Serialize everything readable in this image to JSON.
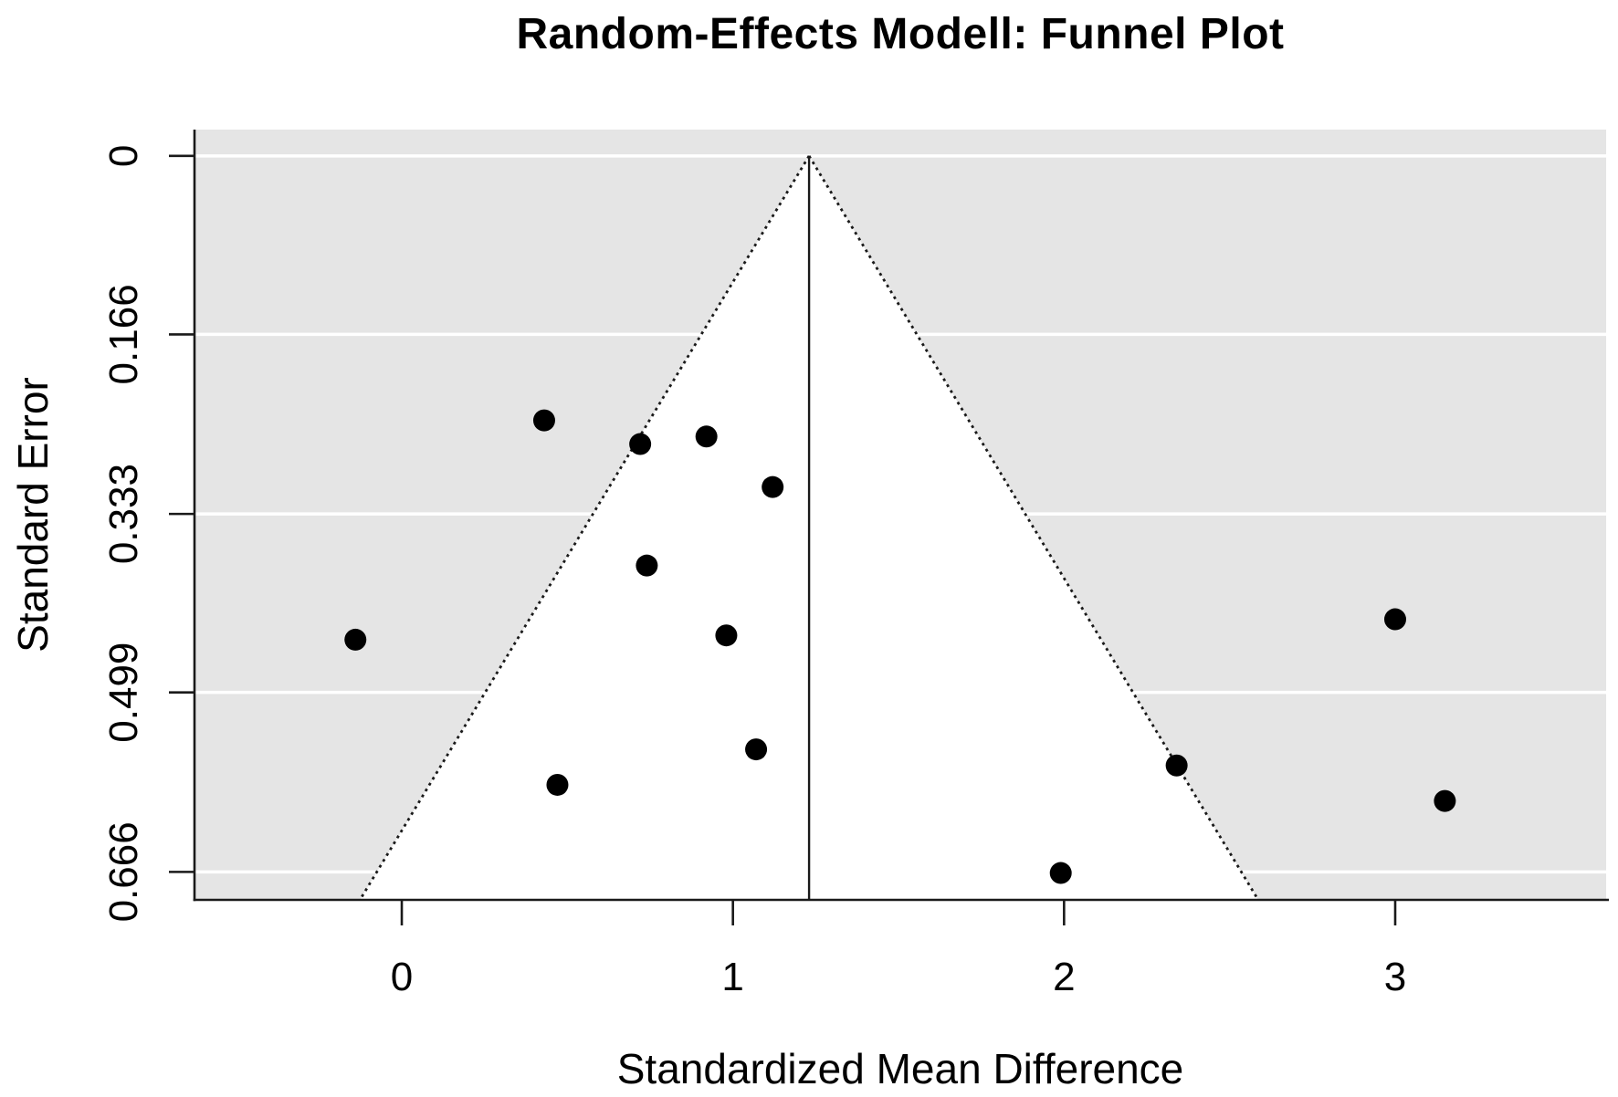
{
  "chart_data": {
    "type": "scatter",
    "subtype": "funnel-plot",
    "title": "Random-Effects Modell: Funnel Plot",
    "xlabel": "Standardized Mean Difference",
    "ylabel": "Standard Error",
    "x_ticks": [
      0,
      1,
      2,
      3
    ],
    "x_tick_labels": [
      "0",
      "1",
      "2",
      "3"
    ],
    "y_ticks": [
      0,
      0.166,
      0.333,
      0.499,
      0.666
    ],
    "y_tick_labels": [
      "0",
      "0.166",
      "0.333",
      "0.499",
      "0.666"
    ],
    "xlim": [
      -0.626,
      3.637
    ],
    "ylim": [
      -0.0245,
      0.692
    ],
    "y_axis_inverted": true,
    "grid": "horizontal-white-gridlines",
    "legend_position": "none",
    "estimate": 1.23,
    "ci_multiplier": 1.96,
    "points": [
      {
        "smd": -0.14,
        "se": 0.45
      },
      {
        "smd": 0.43,
        "se": 0.246
      },
      {
        "smd": 0.47,
        "se": 0.585
      },
      {
        "smd": 0.72,
        "se": 0.268
      },
      {
        "smd": 0.74,
        "se": 0.381
      },
      {
        "smd": 0.92,
        "se": 0.261
      },
      {
        "smd": 0.98,
        "se": 0.446
      },
      {
        "smd": 1.07,
        "se": 0.552
      },
      {
        "smd": 1.12,
        "se": 0.308
      },
      {
        "smd": 1.99,
        "se": 0.667
      },
      {
        "smd": 2.34,
        "se": 0.567
      },
      {
        "smd": 3.0,
        "se": 0.431
      },
      {
        "smd": 3.15,
        "se": 0.6
      }
    ],
    "colors": {
      "panel_background": "#e5e5e5",
      "funnel_region_fill": "#ffffff",
      "gridline": "#ffffff",
      "point": "#000000",
      "funnel_edge": "#1a1a1a",
      "estimate_line": "#1a1a1a",
      "axis": "#1a1a1a",
      "text": "#000000"
    }
  }
}
